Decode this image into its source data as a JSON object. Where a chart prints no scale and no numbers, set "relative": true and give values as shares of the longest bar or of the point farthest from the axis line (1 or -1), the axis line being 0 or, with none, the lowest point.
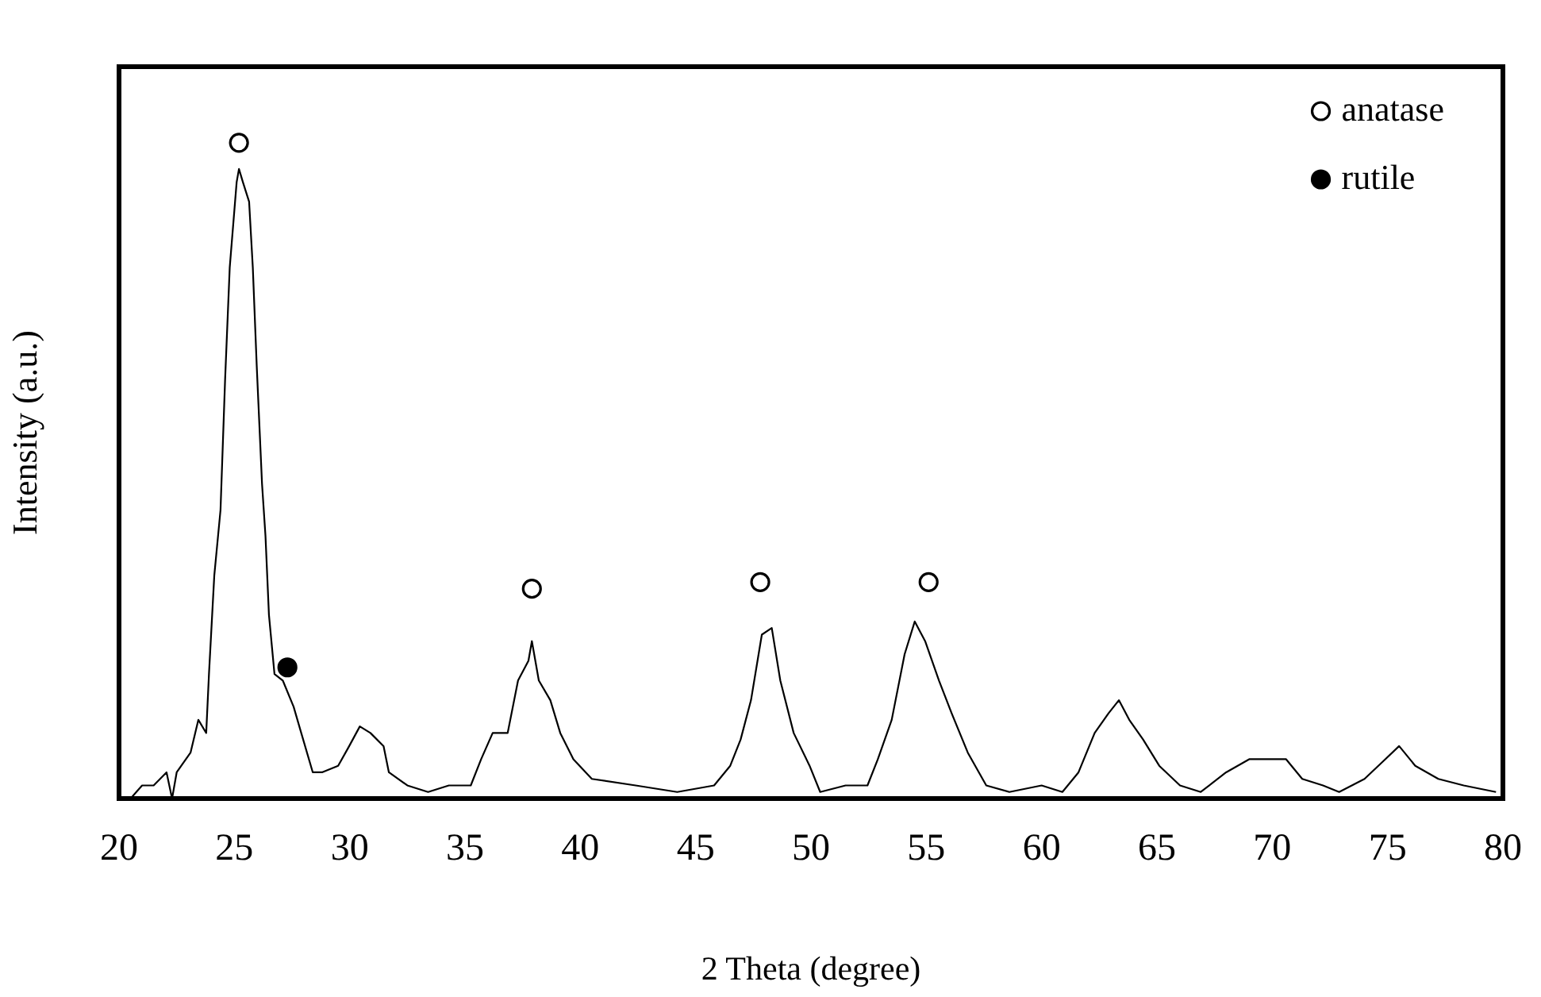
{
  "chart_data": {
    "type": "line",
    "xlabel": "2 Theta (degree)",
    "ylabel": "Intensity (a.u.)",
    "relative": true,
    "xlim": [
      20,
      80
    ],
    "xticks": [
      20,
      25,
      30,
      35,
      40,
      45,
      50,
      55,
      60,
      65,
      70,
      75,
      80
    ],
    "grid": false,
    "legend": "top right",
    "series": [
      {
        "color": "#000000",
        "marker": "none",
        "x": [
          20.5,
          21.0,
          21.5,
          22.06,
          22.3,
          22.5,
          23.1,
          23.44,
          23.78,
          23.9,
          24.13,
          24.4,
          24.6,
          24.8,
          25.1,
          25.2,
          25.37,
          25.64,
          25.8,
          25.97,
          26.2,
          26.35,
          26.5,
          26.74,
          27.1,
          27.57,
          27.9,
          28.4,
          28.8,
          29.5,
          29.98,
          30.44,
          30.9,
          31.47,
          31.7,
          32.5,
          33.4,
          34.3,
          35.25,
          35.7,
          36.2,
          36.85,
          37.3,
          37.75,
          37.9,
          38.2,
          38.7,
          39.13,
          39.7,
          40.5,
          42.4,
          44.2,
          45.8,
          46.5,
          46.95,
          47.4,
          47.87,
          48.3,
          48.67,
          49.25,
          49.94,
          50.4,
          51.5,
          52.45,
          52.9,
          53.5,
          54.06,
          54.5,
          54.95,
          55.55,
          56.1,
          56.8,
          57.6,
          58.6,
          60.0,
          60.9,
          61.6,
          62.3,
          62.9,
          63.35,
          63.8,
          64.4,
          65.1,
          66.0,
          66.9,
          68.0,
          69.0,
          69.7,
          70.6,
          71.3,
          72.2,
          72.9,
          74.0,
          74.9,
          75.5,
          76.2,
          77.2,
          78.3,
          79.7
        ],
        "values": [
          0.0,
          0.02,
          0.02,
          0.04,
          0.0,
          0.04,
          0.07,
          0.12,
          0.1,
          0.19,
          0.34,
          0.44,
          0.64,
          0.81,
          0.94,
          0.96,
          0.94,
          0.91,
          0.81,
          0.66,
          0.48,
          0.4,
          0.28,
          0.19,
          0.18,
          0.14,
          0.1,
          0.04,
          0.04,
          0.05,
          0.08,
          0.11,
          0.1,
          0.08,
          0.04,
          0.02,
          0.01,
          0.02,
          0.02,
          0.06,
          0.1,
          0.1,
          0.18,
          0.21,
          0.24,
          0.18,
          0.15,
          0.1,
          0.06,
          0.03,
          0.02,
          0.01,
          0.02,
          0.05,
          0.09,
          0.15,
          0.25,
          0.26,
          0.18,
          0.1,
          0.05,
          0.01,
          0.02,
          0.02,
          0.06,
          0.12,
          0.22,
          0.27,
          0.24,
          0.18,
          0.13,
          0.07,
          0.02,
          0.01,
          0.02,
          0.01,
          0.04,
          0.1,
          0.13,
          0.15,
          0.12,
          0.09,
          0.05,
          0.02,
          0.01,
          0.04,
          0.06,
          0.06,
          0.06,
          0.03,
          0.02,
          0.01,
          0.03,
          0.06,
          0.08,
          0.05,
          0.03,
          0.02,
          0.01
        ]
      },
      {
        "type": "scatter",
        "name": "anatase",
        "color": "#ffffff",
        "marker": "circle",
        "x": [
          25.2,
          37.9,
          47.8,
          55.1
        ],
        "values": [
          1.0,
          0.32,
          0.33,
          0.33
        ]
      },
      {
        "type": "scatter",
        "name": "rutile",
        "color": "#000000",
        "marker": "circle",
        "x": [
          27.3
        ],
        "values": [
          0.2
        ]
      }
    ]
  }
}
